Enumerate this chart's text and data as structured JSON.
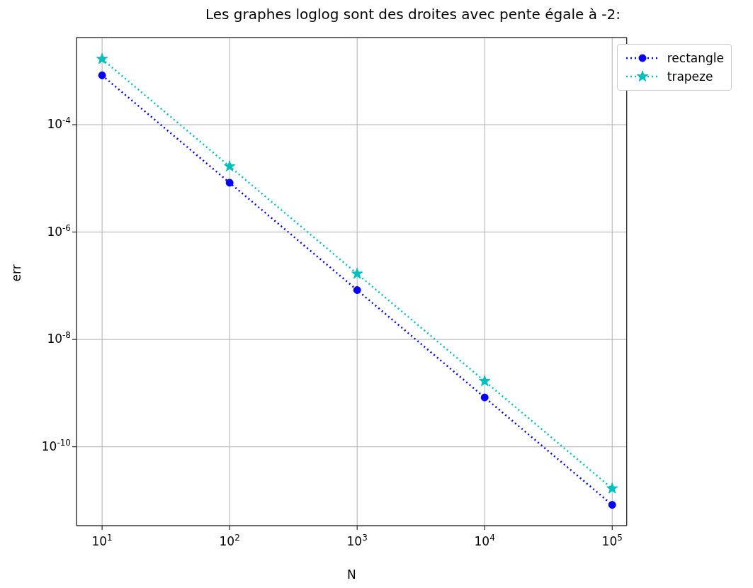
{
  "chart_data": {
    "type": "line",
    "title": "Les graphes loglog sont des droites avec pente égale à -2:",
    "xlabel": "N",
    "ylabel": "err",
    "log": "xy",
    "grid": true,
    "legend": "top right",
    "line_style": "dotted",
    "x": [
      10,
      100,
      1000,
      10000,
      100000
    ],
    "series": [
      {
        "name": "rectangle",
        "color": "#0000ff",
        "marker": "circle",
        "values": [
          0.00083,
          8.3e-06,
          8.3e-08,
          8.3e-10,
          8.3e-12
        ]
      },
      {
        "name": "trapeze",
        "color": "#00bfbf",
        "marker": "star",
        "values": [
          0.00167,
          1.67e-05,
          1.67e-07,
          1.67e-09,
          1.67e-11
        ]
      }
    ],
    "xlim": [
      6.3,
      130000
    ],
    "ylim": [
      3.4e-12,
      0.0042
    ],
    "xticks": [
      {
        "value": 10,
        "label": "10$^{1}$"
      },
      {
        "value": 100,
        "label": "10$^{2}$"
      },
      {
        "value": 1000,
        "label": "10$^{3}$"
      },
      {
        "value": 10000,
        "label": "10$^{4}$"
      },
      {
        "value": 100000,
        "label": "10$^{5}$"
      }
    ],
    "yticks": [
      {
        "value": 0.0001,
        "label": "10$^{-4}$"
      },
      {
        "value": 1e-06,
        "label": "10$^{-6}$"
      },
      {
        "value": 1e-08,
        "label": "10$^{-8}$"
      },
      {
        "value": 1e-10,
        "label": "10$^{-10}$"
      }
    ]
  }
}
